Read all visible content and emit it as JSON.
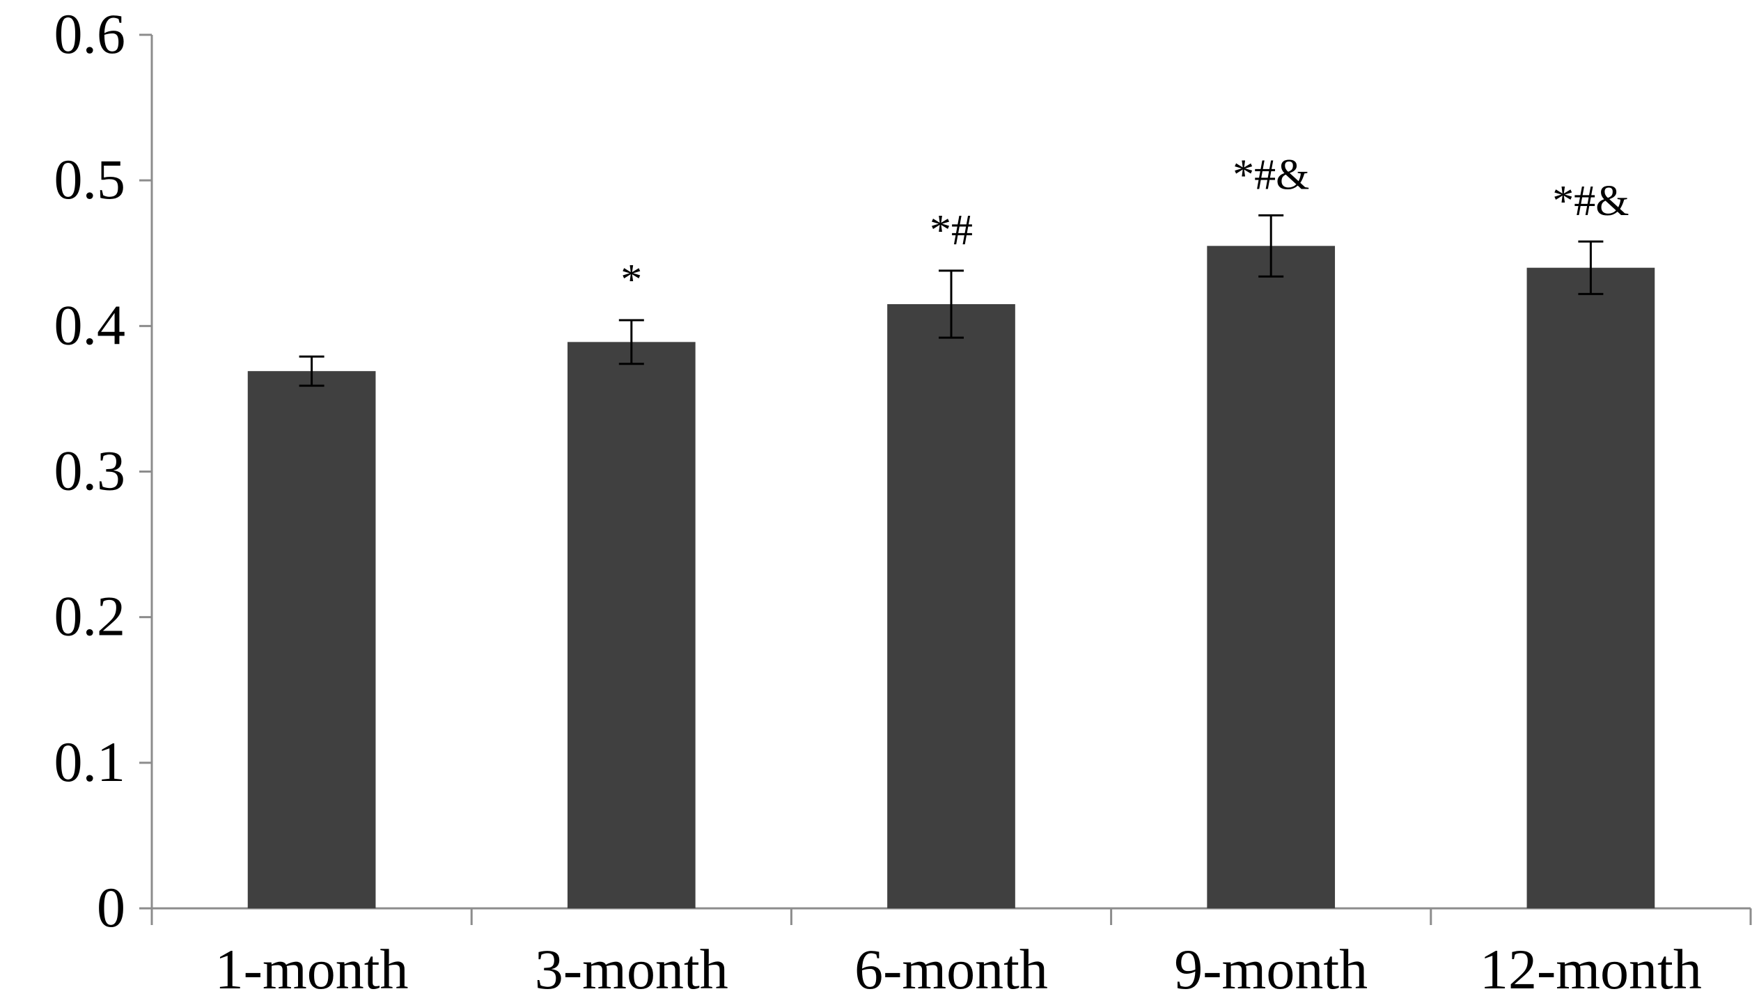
{
  "chart_data": {
    "type": "bar",
    "title": "",
    "xlabel": "",
    "ylabel": "",
    "categories": [
      "1-month",
      "3-month",
      "6-month",
      "9-month",
      "12-month"
    ],
    "values": [
      0.369,
      0.389,
      0.415,
      0.455,
      0.44
    ],
    "error": [
      0.01,
      0.015,
      0.023,
      0.021,
      0.018
    ],
    "annotations": [
      "",
      "*",
      "*#",
      "*#&",
      "*#&"
    ],
    "ylim": [
      0,
      0.6
    ],
    "yticks": [
      "0",
      "0.1",
      "0.2",
      "0.3",
      "0.4",
      "0.5",
      "0.6"
    ],
    "bar_color": "#404040",
    "axis_color": "#8c8c8c",
    "grid": false,
    "legend": "none"
  }
}
